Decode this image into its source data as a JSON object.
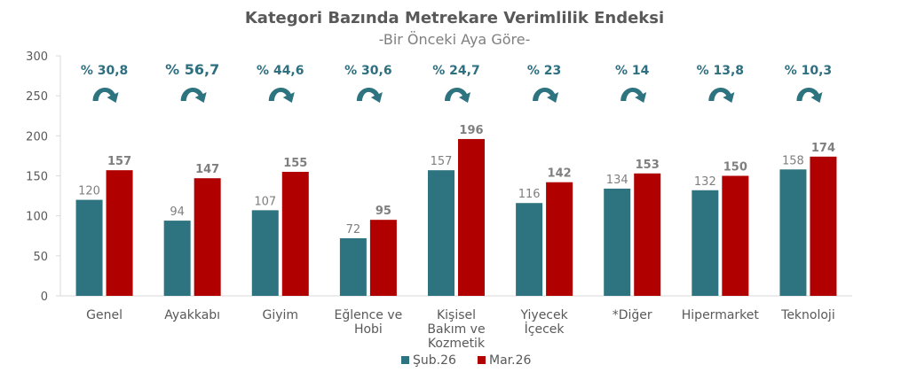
{
  "chart_data": {
    "type": "bar",
    "title": "Kategori Bazında Metrekare Verimlilik Endeksi",
    "subtitle": "-Bir Önceki Aya Göre-",
    "categories": [
      [
        "Genel"
      ],
      [
        "Ayakkabı"
      ],
      [
        "Giyim"
      ],
      [
        "Eğlence ve",
        "Hobi"
      ],
      [
        "Kişisel",
        "Bakım ve",
        "Kozmetik"
      ],
      [
        "Yiyecek",
        "İçecek"
      ],
      [
        "*Diğer"
      ],
      [
        "Hipermarket"
      ],
      [
        "Teknoloji"
      ]
    ],
    "series": [
      {
        "name": "Şub.26",
        "color": "#2e7480",
        "values": [
          120,
          94,
          107,
          72,
          157,
          116,
          134,
          132,
          158
        ]
      },
      {
        "name": "Mar.26",
        "color": "#b00000",
        "values": [
          157,
          147,
          155,
          95,
          196,
          142,
          153,
          150,
          174
        ]
      }
    ],
    "change_labels": [
      "% 30,8",
      "% 56,7",
      "% 44,6",
      "% 30,6",
      "% 24,7",
      "% 23",
      "% 14",
      "% 13,8",
      "% 10,3"
    ],
    "yticks": [
      0,
      50,
      100,
      150,
      200,
      250,
      300
    ],
    "ylim": [
      0,
      300
    ],
    "grid": false,
    "legend": "bottom",
    "xlabel": "",
    "ylabel": ""
  }
}
